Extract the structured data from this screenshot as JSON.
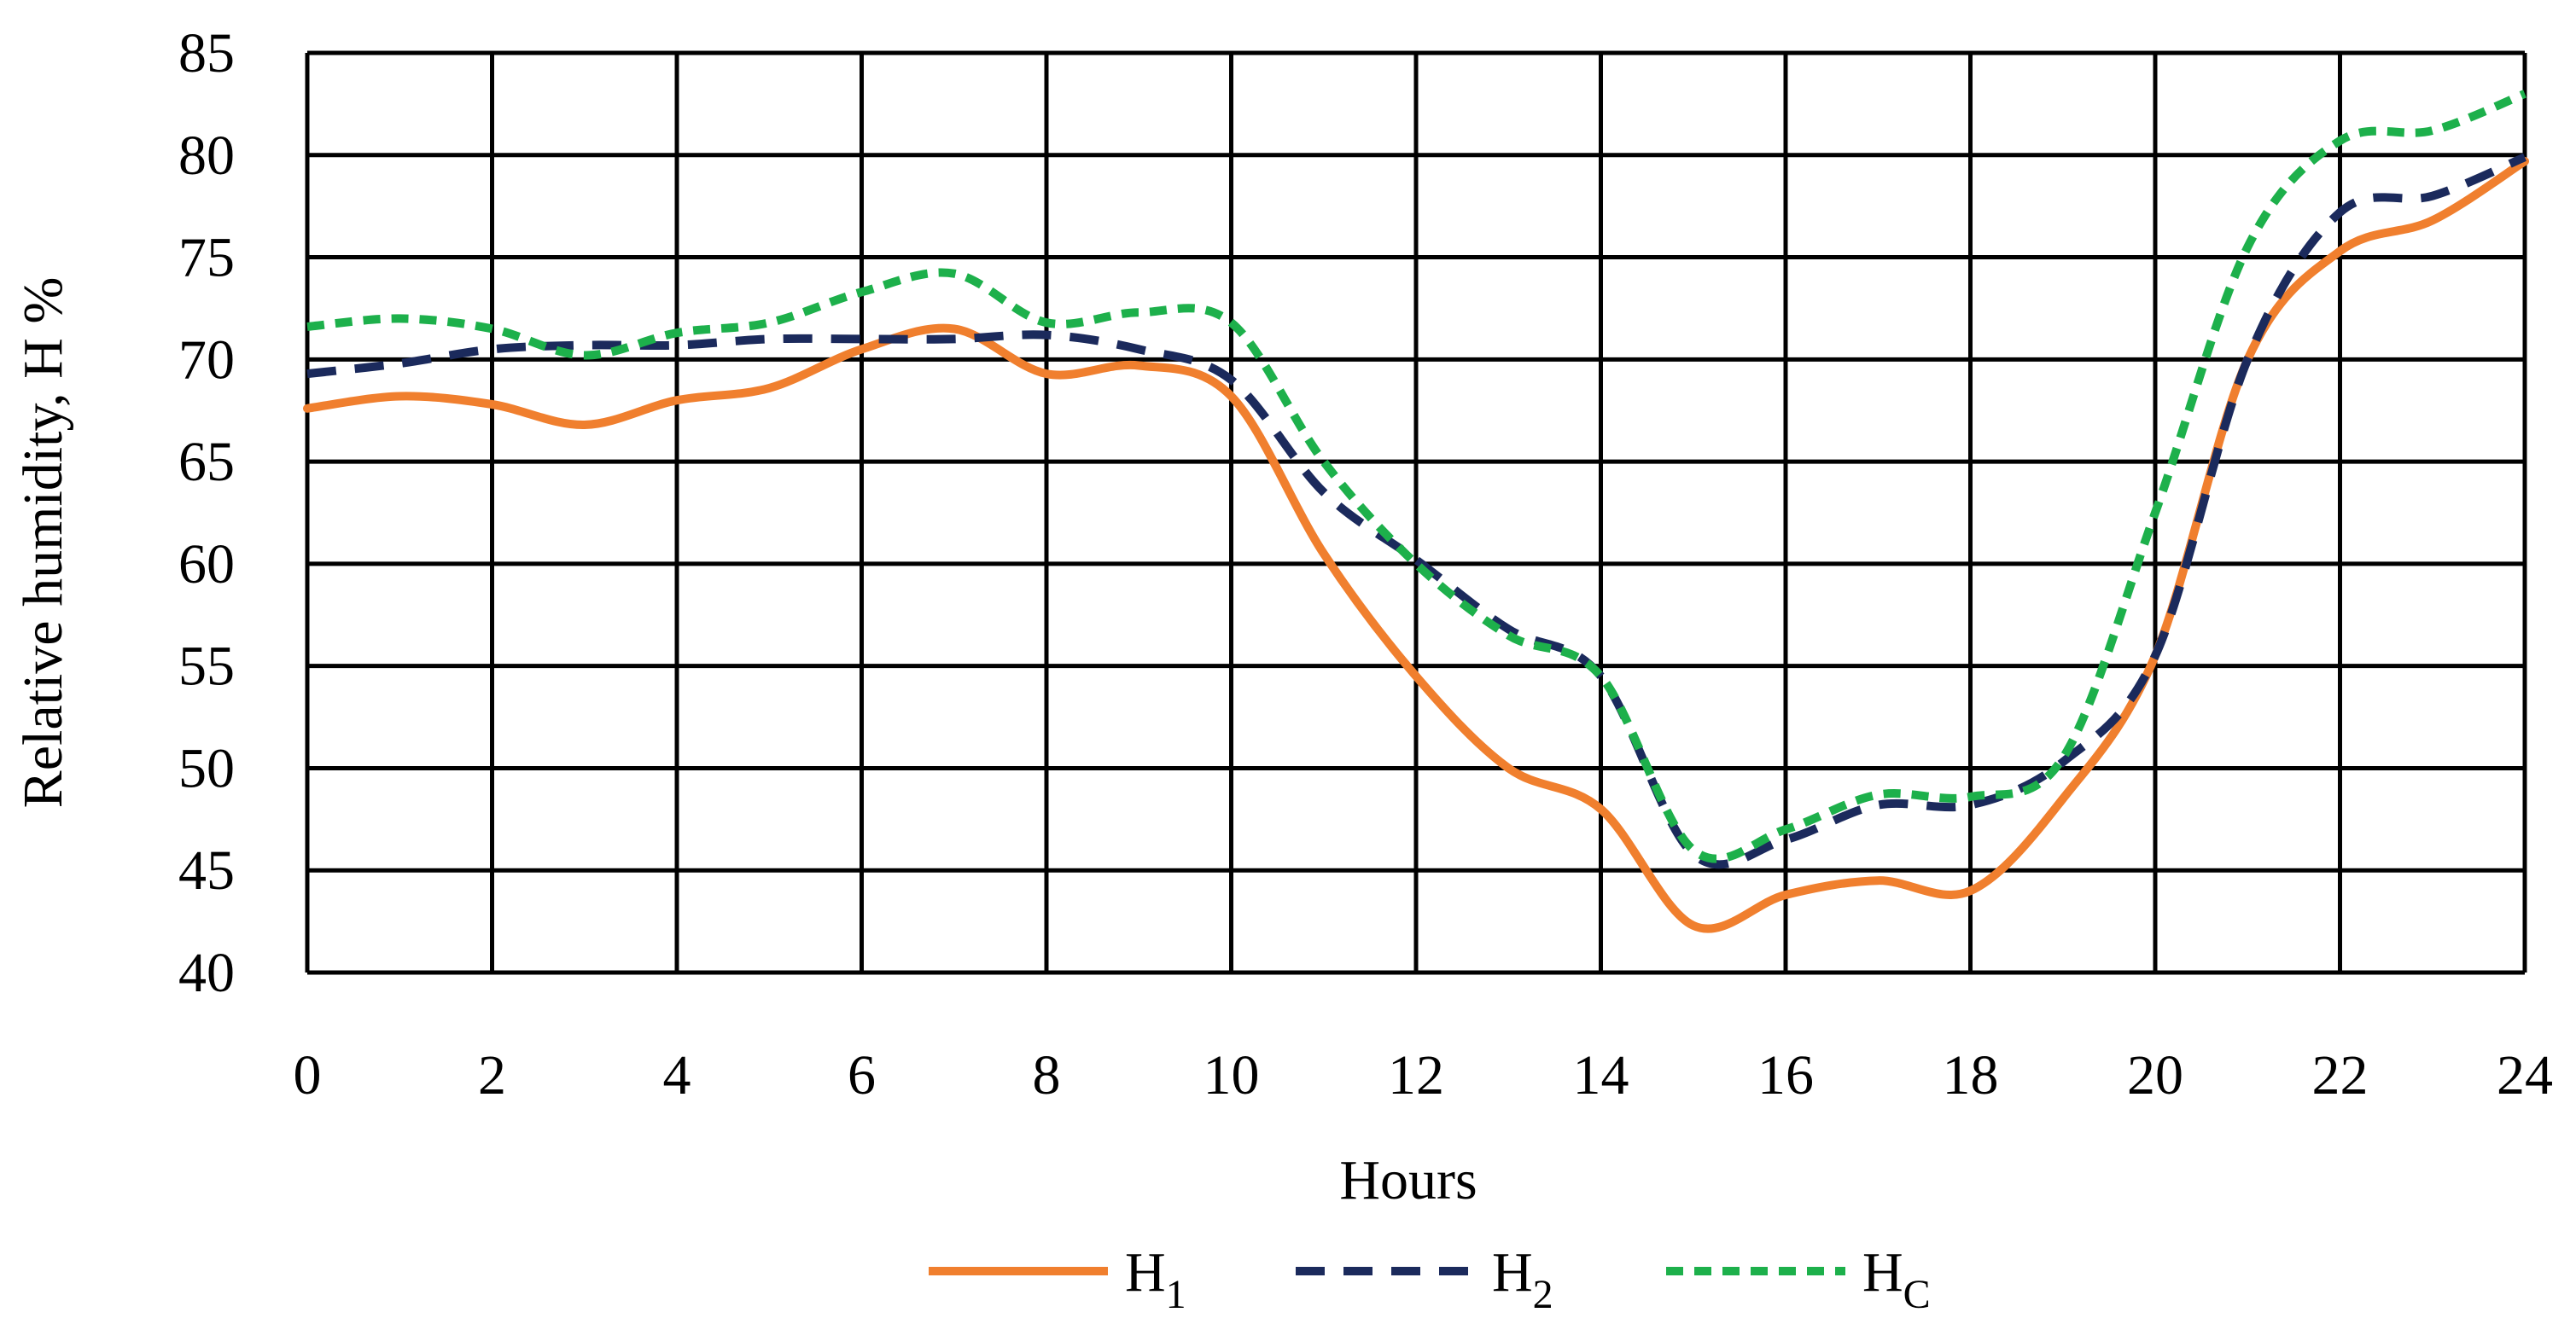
{
  "chart_data": {
    "type": "line",
    "title": "",
    "xlabel": "Hours",
    "ylabel": "Relative humidity, H %",
    "xlim": [
      0,
      24
    ],
    "ylim": [
      40,
      85
    ],
    "xticks": [
      0,
      2,
      4,
      6,
      8,
      10,
      12,
      14,
      16,
      18,
      20,
      22,
      24
    ],
    "yticks": [
      40,
      45,
      50,
      55,
      60,
      65,
      70,
      75,
      80,
      85
    ],
    "grid_x": [
      0,
      2,
      4,
      6,
      8,
      10,
      12,
      14,
      16,
      18,
      20,
      22,
      24
    ],
    "grid_y": [
      40,
      45,
      50,
      55,
      60,
      65,
      70,
      75,
      80,
      85
    ],
    "legend_position": "bottom",
    "x": [
      0,
      1,
      2,
      3,
      4,
      5,
      6,
      7,
      8,
      9,
      10,
      11,
      12,
      13,
      14,
      15,
      16,
      17,
      18,
      19,
      20,
      21,
      22,
      23,
      24
    ],
    "series": [
      {
        "name": "H",
        "name_sub": "1",
        "color": "#F07F2E",
        "dash": "solid",
        "values": [
          67.6,
          68.2,
          67.8,
          66.8,
          68.0,
          68.6,
          70.5,
          71.5,
          69.3,
          69.7,
          68.2,
          60.5,
          54.5,
          50.0,
          48.0,
          42.3,
          43.8,
          44.5,
          44.0,
          48.5,
          55.5,
          70.0,
          75.3,
          76.8,
          79.7
        ]
      },
      {
        "name": "H",
        "name_sub": "2",
        "color": "#1B2A5C",
        "dash": "long",
        "values": [
          69.3,
          69.8,
          70.5,
          70.7,
          70.7,
          71.0,
          71.0,
          71.0,
          71.2,
          70.5,
          69.0,
          63.5,
          60.2,
          56.8,
          54.5,
          45.8,
          46.5,
          48.2,
          48.2,
          50.3,
          55.5,
          70.0,
          77.2,
          78.0,
          79.9
        ]
      },
      {
        "name": "H",
        "name_sub": "C",
        "color": "#1DB04B",
        "dash": "short",
        "values": [
          71.6,
          72.0,
          71.5,
          70.2,
          71.3,
          71.8,
          73.3,
          74.2,
          71.8,
          72.3,
          71.8,
          65.0,
          60.0,
          56.5,
          54.5,
          46.0,
          47.0,
          48.7,
          48.6,
          50.5,
          62.5,
          75.5,
          80.7,
          81.2,
          83.0
        ]
      }
    ]
  }
}
